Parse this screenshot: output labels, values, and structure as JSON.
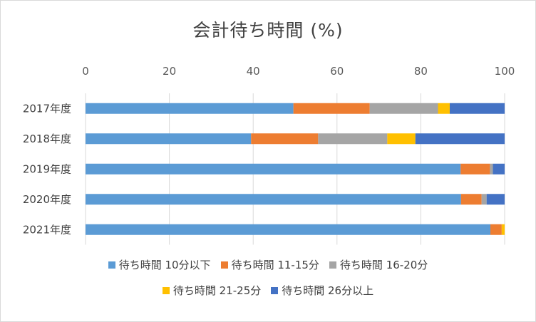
{
  "chart_data": {
    "type": "bar",
    "orientation": "horizontal",
    "stacked": true,
    "title": "会計待ち時間 (%)",
    "categories": [
      "2017年度",
      "2018年度",
      "2019年度",
      "2020年度",
      "2021年度"
    ],
    "xlim": [
      0,
      100
    ],
    "xticks": [
      0,
      20,
      40,
      60,
      80,
      100
    ],
    "gridlines": true,
    "legend_position": "bottom",
    "series": [
      {
        "name": "待ち時間 10分以下",
        "color": "#5b9bd5",
        "values": [
          49.6,
          39.5,
          89.5,
          89.6,
          96.6
        ]
      },
      {
        "name": "待ち時間 11-15分",
        "color": "#ed7d31",
        "values": [
          18.2,
          16.0,
          7.0,
          4.9,
          2.7
        ]
      },
      {
        "name": "待ち時間 16-20分",
        "color": "#a5a5a5",
        "values": [
          16.3,
          16.5,
          0.7,
          1.2,
          0.0
        ]
      },
      {
        "name": "待ち時間 21-25分",
        "color": "#ffc000",
        "values": [
          2.8,
          6.7,
          0.0,
          0.0,
          0.7
        ]
      },
      {
        "name": "待ち時間 26分以上",
        "color": "#4472c4",
        "values": [
          13.1,
          21.3,
          2.8,
          4.3,
          0.0
        ]
      }
    ]
  }
}
